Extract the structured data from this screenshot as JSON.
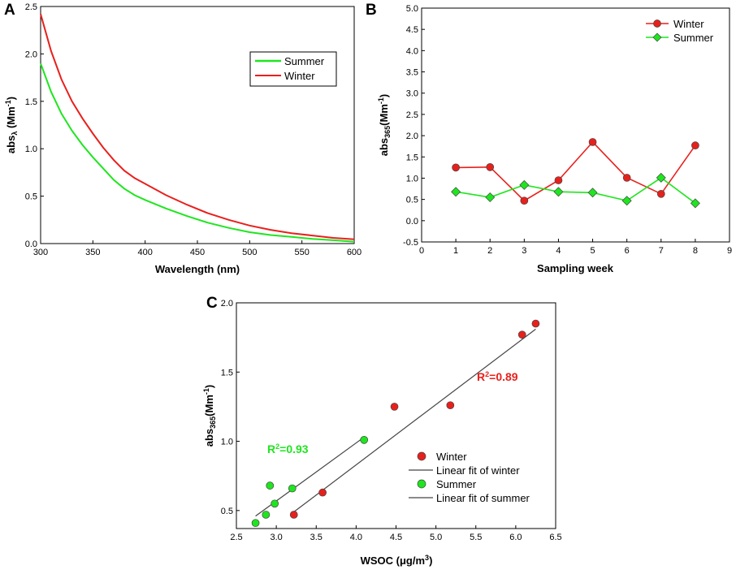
{
  "colors": {
    "winter": "#e8201c",
    "summer": "#1ee61e",
    "fit": "#444444",
    "axis": "#000000"
  },
  "chart_data": [
    {
      "id": "A",
      "panel_label": "A",
      "type": "line",
      "xlabel": "Wavelength (nm)",
      "ylabel_main": "abs",
      "ylabel_sub": "λ",
      "ylabel_unit": " (Mm",
      "ylabel_unit_sup": "-1",
      "ylabel_close": ")",
      "xlim": [
        300,
        600
      ],
      "ylim": [
        0,
        2.5
      ],
      "xticks": [
        300,
        350,
        400,
        450,
        500,
        550,
        600
      ],
      "xtick_labels": [
        "300",
        "350",
        "400",
        "450",
        "500",
        "550",
        "600"
      ],
      "yticks": [
        0,
        0.5,
        1.0,
        1.5,
        2.0,
        2.5
      ],
      "ytick_labels": [
        "0.0",
        "0.5",
        "1.0",
        "1.5",
        "2.0",
        "2.5"
      ],
      "legend": [
        "Summer",
        "Winter"
      ],
      "series": [
        {
          "name": "Summer",
          "color": "#1ee61e",
          "x": [
            300,
            310,
            320,
            330,
            340,
            350,
            360,
            370,
            380,
            390,
            400,
            420,
            440,
            460,
            480,
            500,
            520,
            540,
            560,
            580,
            600
          ],
          "values": [
            1.9,
            1.6,
            1.37,
            1.19,
            1.04,
            0.91,
            0.79,
            0.67,
            0.58,
            0.51,
            0.46,
            0.37,
            0.29,
            0.22,
            0.165,
            0.12,
            0.09,
            0.07,
            0.05,
            0.035,
            0.02
          ]
        },
        {
          "name": "Winter",
          "color": "#e8201c",
          "x": [
            300,
            310,
            320,
            330,
            340,
            350,
            360,
            370,
            380,
            390,
            400,
            420,
            440,
            460,
            480,
            500,
            520,
            540,
            560,
            580,
            600
          ],
          "values": [
            2.42,
            2.03,
            1.73,
            1.5,
            1.32,
            1.16,
            1.01,
            0.88,
            0.77,
            0.69,
            0.63,
            0.51,
            0.41,
            0.32,
            0.25,
            0.19,
            0.145,
            0.11,
            0.085,
            0.06,
            0.045
          ]
        }
      ]
    },
    {
      "id": "B",
      "panel_label": "B",
      "type": "line",
      "xlabel": "Sampling week",
      "ylabel_main": "abs",
      "ylabel_sub": "365",
      "ylabel_unit": "(Mm",
      "ylabel_unit_sup": "-1",
      "ylabel_close": ")",
      "xlim": [
        0,
        9
      ],
      "ylim": [
        -0.5,
        5.0
      ],
      "xticks": [
        0,
        1,
        2,
        3,
        4,
        5,
        6,
        7,
        8,
        9
      ],
      "xtick_labels": [
        "0",
        "1",
        "2",
        "3",
        "4",
        "5",
        "6",
        "7",
        "8",
        "9"
      ],
      "yticks": [
        -0.5,
        0,
        0.5,
        1.0,
        1.5,
        2.0,
        2.5,
        3.0,
        3.5,
        4.0,
        4.5,
        5.0
      ],
      "ytick_labels": [
        "-0.5",
        "0.0",
        "0.5",
        "1.0",
        "1.5",
        "2.0",
        "2.5",
        "3.0",
        "3.5",
        "4.0",
        "4.5",
        "5.0"
      ],
      "legend": [
        "Winter",
        "Summer"
      ],
      "series": [
        {
          "name": "Winter",
          "color": "#e8201c",
          "marker": "circle",
          "x": [
            1,
            2,
            3,
            4,
            5,
            6,
            7,
            8
          ],
          "values": [
            1.25,
            1.26,
            0.47,
            0.95,
            1.85,
            1.01,
            0.63,
            1.77
          ]
        },
        {
          "name": "Summer",
          "color": "#1ee61e",
          "marker": "diamond",
          "x": [
            1,
            2,
            3,
            4,
            5,
            6,
            7,
            8
          ],
          "values": [
            0.68,
            0.55,
            0.84,
            0.68,
            0.66,
            0.47,
            1.01,
            0.41
          ]
        }
      ]
    },
    {
      "id": "C",
      "panel_label": "C",
      "type": "scatter",
      "xlabel_main": "WSOC (μg/m",
      "xlabel_sup": "3",
      "xlabel_close": ")",
      "ylabel_main": "abs",
      "ylabel_sub": "365",
      "ylabel_unit": "(Mm",
      "ylabel_unit_sup": "-1",
      "ylabel_close": ")",
      "xlim": [
        2.5,
        6.5
      ],
      "ylim": [
        0.37,
        2.0
      ],
      "xticks": [
        2.5,
        3.0,
        3.5,
        4.0,
        4.5,
        5.0,
        5.5,
        6.0,
        6.5
      ],
      "xtick_labels": [
        "2.5",
        "3.0",
        "3.5",
        "4.0",
        "4.5",
        "5.0",
        "5.5",
        "6.0",
        "6.5"
      ],
      "yticks": [
        0.5,
        1.0,
        1.5,
        2.0
      ],
      "ytick_labels": [
        "0.5",
        "1.0",
        "1.5",
        "2.0"
      ],
      "legend": [
        "Winter",
        "Linear fit of winter",
        "Summer",
        "Linear fit of summer"
      ],
      "series": [
        {
          "name": "Winter",
          "color": "#e8201c",
          "x": [
            3.22,
            3.58,
            4.48,
            5.18,
            6.08,
            6.25
          ],
          "values": [
            0.47,
            0.63,
            1.25,
            1.26,
            1.77,
            1.85
          ]
        },
        {
          "name": "Summer",
          "color": "#1ee61e",
          "x": [
            2.74,
            2.87,
            2.92,
            2.98,
            3.2,
            4.1
          ],
          "values": [
            0.41,
            0.47,
            0.68,
            0.55,
            0.66,
            1.01
          ]
        }
      ],
      "fits": [
        {
          "name": "Linear fit of winter",
          "x": [
            3.22,
            6.25
          ],
          "values": [
            0.49,
            1.81
          ]
        },
        {
          "name": "Linear fit of summer",
          "x": [
            2.74,
            4.1
          ],
          "values": [
            0.46,
            1.03
          ]
        }
      ],
      "annotations": [
        {
          "id": "r2-winter",
          "text_main": "R",
          "text_sup": "2",
          "text_rest": "=0.89",
          "color": "#e8201c"
        },
        {
          "id": "r2-summer",
          "text_main": "R",
          "text_sup": "2",
          "text_rest": "=0.93",
          "color": "#1ee61e"
        }
      ]
    }
  ]
}
